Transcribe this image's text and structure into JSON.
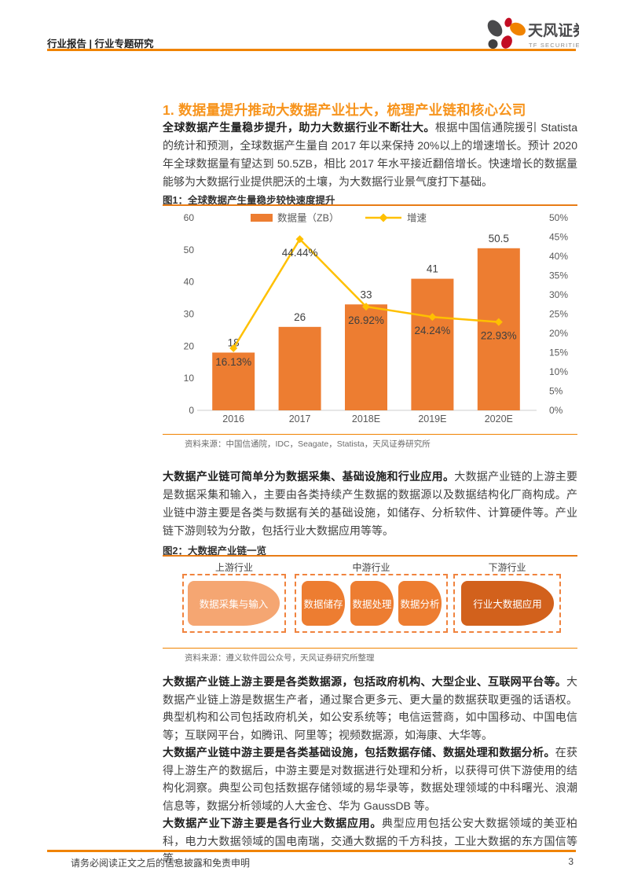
{
  "header": {
    "left": "行业报告 | 行业专题研究",
    "brand": "天风证券",
    "brand_sub": "TF SECURITIES"
  },
  "section": {
    "title": "1. 数据量提升推动大数据产业壮大，梳理产业链和核心公司"
  },
  "paragraphs": [
    {
      "lead": "全球数据产生量稳步提升，助力大数据行业不断壮大。",
      "text": "根据中国信通院援引 Statista 的统计和预测，全球数据产生量自 2017 年以来保持 20%以上的增速增长。预计 2020 年全球数据量有望达到 50.5ZB，相比 2017 年水平接近翻倍增长。快速增长的数据量能够为大数据行业提供肥沃的土壤，为大数据行业景气度打下基础。"
    },
    {
      "lead": "大数据产业链可简单分为数据采集、基础设施和行业应用。",
      "text": "大数据产业链的上游主要是数据采集和输入，主要由各类持续产生数据的数据源以及数据结构化厂商构成。产业链中游主要是各类与数据有关的基础设施，如储存、分析软件、计算硬件等。产业链下游则较为分散，包括行业大数据应用等等。"
    },
    {
      "lead": "大数据产业链上游主要是各类数据源，包括政府机构、大型企业、互联网平台等。",
      "text": "大数据产业链上游是数据生产者，通过聚合更多元、更大量的数据获取更强的话语权。典型机构和公司包括政府机关，如公安系统等；电信运营商，如中国移动、中国电信等；互联网平台，如腾讯、阿里等；视频数据源，如海康、大华等。"
    },
    {
      "lead": "大数据产业链中游主要是各类基础设施，包括数据存储、数据处理和数据分析。",
      "text": "在获得上游生产的数据后，中游主要是对数据进行处理和分析，以获得可供下游使用的结构化洞察。典型公司包括数据存储领域的易华录等，数据处理领域的中科曙光、浪潮信息等，数据分析领域的人大金仓、华为 GaussDB 等。"
    },
    {
      "lead": "大数据产业下游主要是各行业大数据应用。",
      "text": "典型应用包括公安大数据领域的美亚柏科，电力大数据领域的国电南瑞，交通大数据的千方科技，工业大数据的东方国信等等。"
    }
  ],
  "figure1": {
    "caption": "图1：全球数据产生量稳步较快速度提升",
    "source": "资料来源：中国信通院，IDC，Seagate，Statista，天风证券研究所"
  },
  "chart_data": {
    "type": "bar+line",
    "title": "全球数据产生量稳步较快速度提升",
    "categories": [
      "2016",
      "2017",
      "2018E",
      "2019E",
      "2020E"
    ],
    "series": [
      {
        "name": "数据量（ZB）",
        "type": "bar",
        "axis": "left",
        "values": [
          18,
          26,
          33,
          41,
          50.5
        ],
        "labels": [
          "18",
          "26",
          "33",
          "41",
          "50.5"
        ],
        "color": "#ED7D31"
      },
      {
        "name": "增速",
        "type": "line",
        "axis": "right",
        "values": [
          16.13,
          44.44,
          26.92,
          24.24,
          22.93
        ],
        "labels": [
          "16.13%",
          "44.44%",
          "26.92%",
          "24.24%",
          "22.93%"
        ],
        "color": "#FFC000"
      }
    ],
    "left_axis": {
      "min": 0,
      "max": 60,
      "step": 10,
      "ticks": [
        "0",
        "10",
        "20",
        "30",
        "40",
        "50",
        "60"
      ]
    },
    "right_axis": {
      "min": 0,
      "max": 50,
      "step": 5,
      "ticks": [
        "0%",
        "5%",
        "10%",
        "15%",
        "20%",
        "25%",
        "30%",
        "35%",
        "40%",
        "45%",
        "50%"
      ]
    },
    "legend_position": "top",
    "grid": false
  },
  "figure2": {
    "caption": "图2：大数据产业链一览",
    "source": "资料来源：遵义软件园公众号，天风证券研究所整理",
    "diagram": {
      "groups": [
        {
          "label": "上游行业",
          "items": [
            {
              "label": "数据采集与输入",
              "color": "#F5A672"
            }
          ]
        },
        {
          "label": "中游行业",
          "items": [
            {
              "label": "数据储存",
              "color": "#ED7D31"
            },
            {
              "label": "数据处理",
              "color": "#ED7D31"
            },
            {
              "label": "数据分析",
              "color": "#ED7D31"
            }
          ]
        },
        {
          "label": "下游行业",
          "items": [
            {
              "label": "行业大数据应用",
              "color": "#D2611C"
            }
          ]
        }
      ]
    }
  },
  "footer": {
    "note": "请务必阅读正文之后的信息披露和免责申明",
    "page_number": "3"
  },
  "colors": {
    "accent": "#F08300",
    "section_title": "#F7941D",
    "caption_rule": "#E87C16",
    "bar": "#ED7D31",
    "line": "#FFC000",
    "axis_text": "#595959",
    "data_label": "#3F3F3F",
    "dashed_border": "#F0833E"
  }
}
